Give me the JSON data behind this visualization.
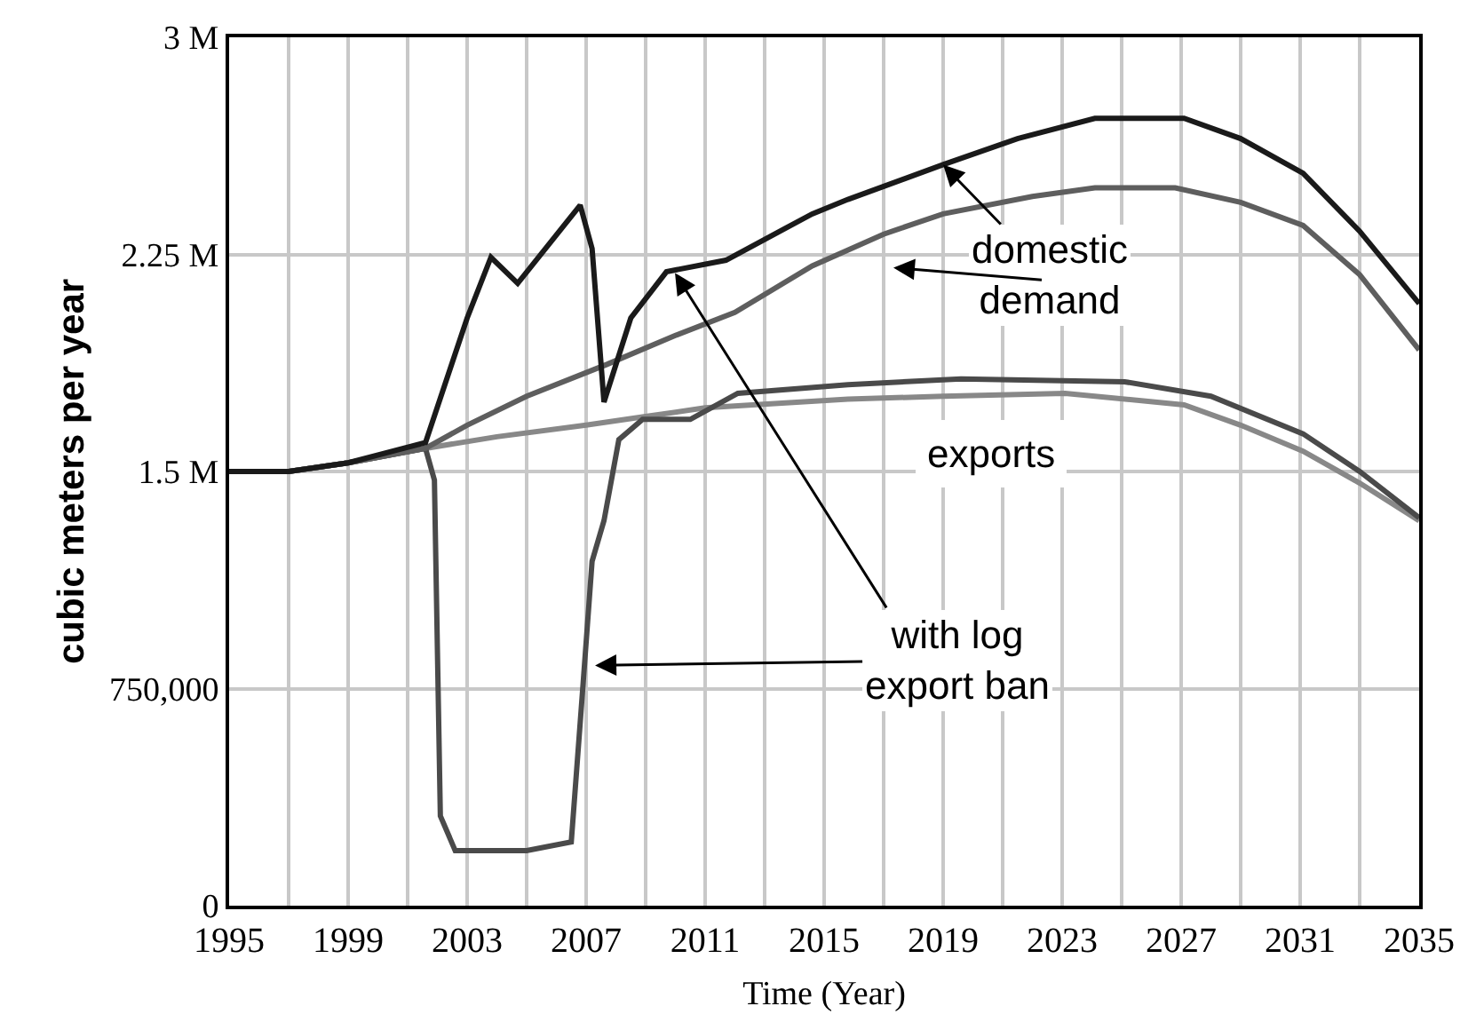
{
  "chart_data": {
    "type": "line",
    "xlabel": "Time (Year)",
    "ylabel": "cubic meters per year",
    "xlim": [
      1995,
      2035
    ],
    "xticks": [
      1995,
      1999,
      2003,
      2007,
      2011,
      2015,
      2019,
      2023,
      2027,
      2031,
      2035
    ],
    "ylim": [
      0,
      3000000
    ],
    "yticks": [
      {
        "value": 0,
        "label": "0"
      },
      {
        "value": 750000,
        "label": "750,000"
      },
      {
        "value": 1500000,
        "label": "1.5 M"
      },
      {
        "value": 2250000,
        "label": "2.25 M"
      },
      {
        "value": 3000000,
        "label": "3 M"
      }
    ],
    "grid": true,
    "marker": "none",
    "line_style": "solid",
    "series": [
      {
        "color": "#888888",
        "x": [
          1995,
          1997,
          1999,
          2001.6,
          2004,
          2007,
          2009,
          2011,
          2015.8,
          2019,
          2023.1,
          2027.1,
          2029,
          2031.1,
          2033,
          2035
        ],
        "values": [
          1500000,
          1500000,
          1530000,
          1580000,
          1620000,
          1660000,
          1690000,
          1720000,
          1750000,
          1760000,
          1770000,
          1730000,
          1660000,
          1570000,
          1460000,
          1330000
        ]
      },
      {
        "color": "#4a4a4a",
        "x": [
          1995,
          1997,
          1999,
          2001.6,
          2001.9,
          2002.1,
          2002.6,
          2005,
          2006.5,
          2006.9,
          2007.2,
          2007.6,
          2008.1,
          2008.9,
          2010.5,
          2012.1,
          2015.8,
          2019.6,
          2025.1,
          2028,
          2031.1,
          2033,
          2035
        ],
        "values": [
          1500000,
          1500000,
          1530000,
          1580000,
          1470000,
          310000,
          190000,
          190000,
          220000,
          770000,
          1190000,
          1330000,
          1610000,
          1680000,
          1680000,
          1770000,
          1800000,
          1820000,
          1810000,
          1760000,
          1630000,
          1500000,
          1340000
        ]
      },
      {
        "color": "#5e5e5e",
        "x": [
          1995,
          1997,
          1999,
          2001.6,
          2003,
          2005,
          2007.7,
          2010,
          2012,
          2014.6,
          2017,
          2019,
          2022,
          2024.1,
          2026.8,
          2029,
          2031.1,
          2033,
          2035
        ],
        "values": [
          1500000,
          1500000,
          1530000,
          1580000,
          1660000,
          1760000,
          1870000,
          1970000,
          2050000,
          2210000,
          2320000,
          2390000,
          2450000,
          2480000,
          2480000,
          2430000,
          2350000,
          2180000,
          1920000
        ]
      },
      {
        "color": "#1a1a1a",
        "x": [
          1995,
          1997,
          1999,
          2001.6,
          2003,
          2003.8,
          2004.7,
          2006.8,
          2007.2,
          2007.6,
          2008.5,
          2009.7,
          2011.7,
          2014.6,
          2015.8,
          2019,
          2021.5,
          2024.1,
          2027.1,
          2029,
          2031.1,
          2033,
          2035
        ],
        "values": [
          1500000,
          1500000,
          1530000,
          1600000,
          2030000,
          2240000,
          2150000,
          2420000,
          2270000,
          1740000,
          2030000,
          2190000,
          2230000,
          2390000,
          2440000,
          2560000,
          2650000,
          2720000,
          2720000,
          2650000,
          2530000,
          2330000,
          2080000
        ]
      }
    ],
    "annotations": [
      {
        "text": "domestic demand",
        "x": 2019,
        "y": 2560000
      },
      "exports",
      {
        "text": "with log export ban",
        "x": 2007.3,
        "y": 830000
      }
    ]
  }
}
